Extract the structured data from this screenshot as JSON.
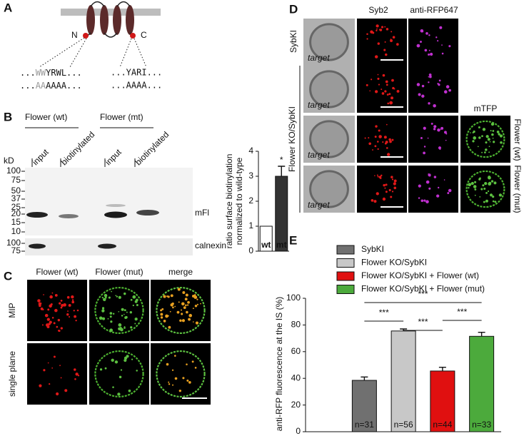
{
  "panel_labels": [
    "A",
    "B",
    "C",
    "D",
    "E"
  ],
  "panel_a": {
    "n_label": "N",
    "c_label": "C",
    "sequences": [
      {
        "prefix": "...",
        "gray": "WW",
        "rest": "YRWL..."
      },
      {
        "prefix": "...",
        "gray": "AA",
        "rest": "AAAA..."
      },
      {
        "text": "...YARI..."
      },
      {
        "text": "...AAAA..."
      }
    ]
  },
  "panel_b": {
    "groups": [
      "Flower (wt)",
      "Flower (mt)"
    ],
    "lanes": [
      "input",
      "biotinylated",
      "input",
      "biotinylated"
    ],
    "kd_label": "kD",
    "markers": [
      100,
      75,
      50,
      37,
      25,
      20,
      15,
      10
    ],
    "band_labels": [
      "mFl",
      "calnexin"
    ],
    "calnexin_markers": [
      100,
      75
    ]
  },
  "panel_c": {
    "columns": [
      "Flower (wt)",
      "Flower (mut)",
      "merge"
    ],
    "rows": [
      "MIP",
      "single plane"
    ]
  },
  "panel_d": {
    "columns": [
      "Syb2",
      "anti-RFP647",
      "mTFP"
    ],
    "rows": [
      "SybKI",
      "Flower KO/SybKI"
    ],
    "right_labels": [
      "Flower (wt)",
      "Flower (mut)"
    ],
    "image_label": "target"
  },
  "chart_data": [
    {
      "type": "bar",
      "ylabel": [
        "ratio surface biotinylation",
        "normalized to wild-type"
      ],
      "categories": [
        "wt",
        "mt"
      ],
      "values": [
        1,
        3
      ],
      "errors": [
        null,
        0.4
      ],
      "colors": [
        "#ffffff",
        "#333333"
      ],
      "ylim": [
        0,
        4
      ],
      "yticks": [
        0,
        1,
        2,
        3,
        4
      ],
      "annotations": [
        "*"
      ]
    },
    {
      "type": "bar",
      "ylabel": "anti-RFP fluorescence at the IS (%)",
      "categories": [
        "SybKI",
        "Flower KO/SybKI",
        "Flower KO/SybKI + Flower (wt)",
        "Flower KO/SybKI + Flower (mut)"
      ],
      "values": [
        38.5,
        75.5,
        45.5,
        71.5
      ],
      "errors": [
        2.5,
        1.5,
        2.8,
        3
      ],
      "colors": [
        "#707070",
        "#c8c8c8",
        "#e01010",
        "#4caa3c"
      ],
      "n_labels": [
        "n=31",
        "n=56",
        "n=44",
        "n=33"
      ],
      "ylim": [
        0,
        100
      ],
      "yticks": [
        0,
        20,
        40,
        60,
        80,
        100
      ],
      "significance": [
        "***",
        "***",
        "***",
        "***"
      ]
    }
  ]
}
